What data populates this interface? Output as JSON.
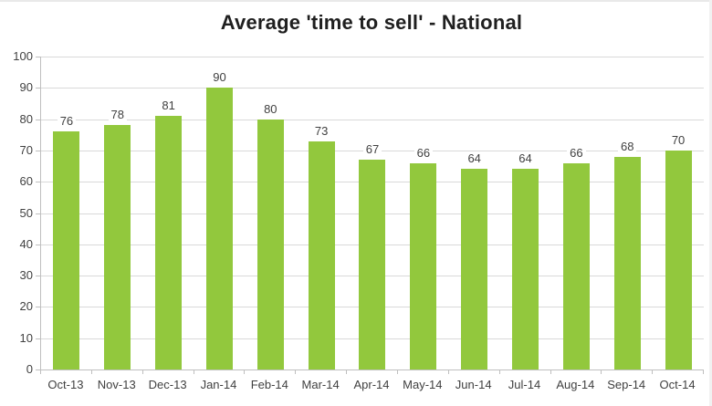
{
  "chart_data": {
    "type": "bar",
    "title": "Average 'time to sell' - National",
    "categories": [
      "Oct-13",
      "Nov-13",
      "Dec-13",
      "Jan-14",
      "Feb-14",
      "Mar-14",
      "Apr-14",
      "May-14",
      "Jun-14",
      "Jul-14",
      "Aug-14",
      "Sep-14",
      "Oct-14"
    ],
    "values": [
      76,
      78,
      81,
      90,
      80,
      73,
      67,
      66,
      64,
      64,
      66,
      68,
      70
    ],
    "xlabel": "",
    "ylabel": "",
    "ylim": [
      0,
      100
    ],
    "yticks": [
      0,
      10,
      20,
      30,
      40,
      50,
      60,
      70,
      80,
      90,
      100
    ],
    "grid": "horizontal",
    "legend_position": "none",
    "data_labels": true,
    "colors": {
      "bar": "#92c83d",
      "gridline": "#d9d9d9",
      "axis": "#bfbfbf",
      "tick_label": "#404040",
      "data_label": "#404040",
      "title": "#1f1f1f",
      "background": "#ffffff"
    }
  }
}
